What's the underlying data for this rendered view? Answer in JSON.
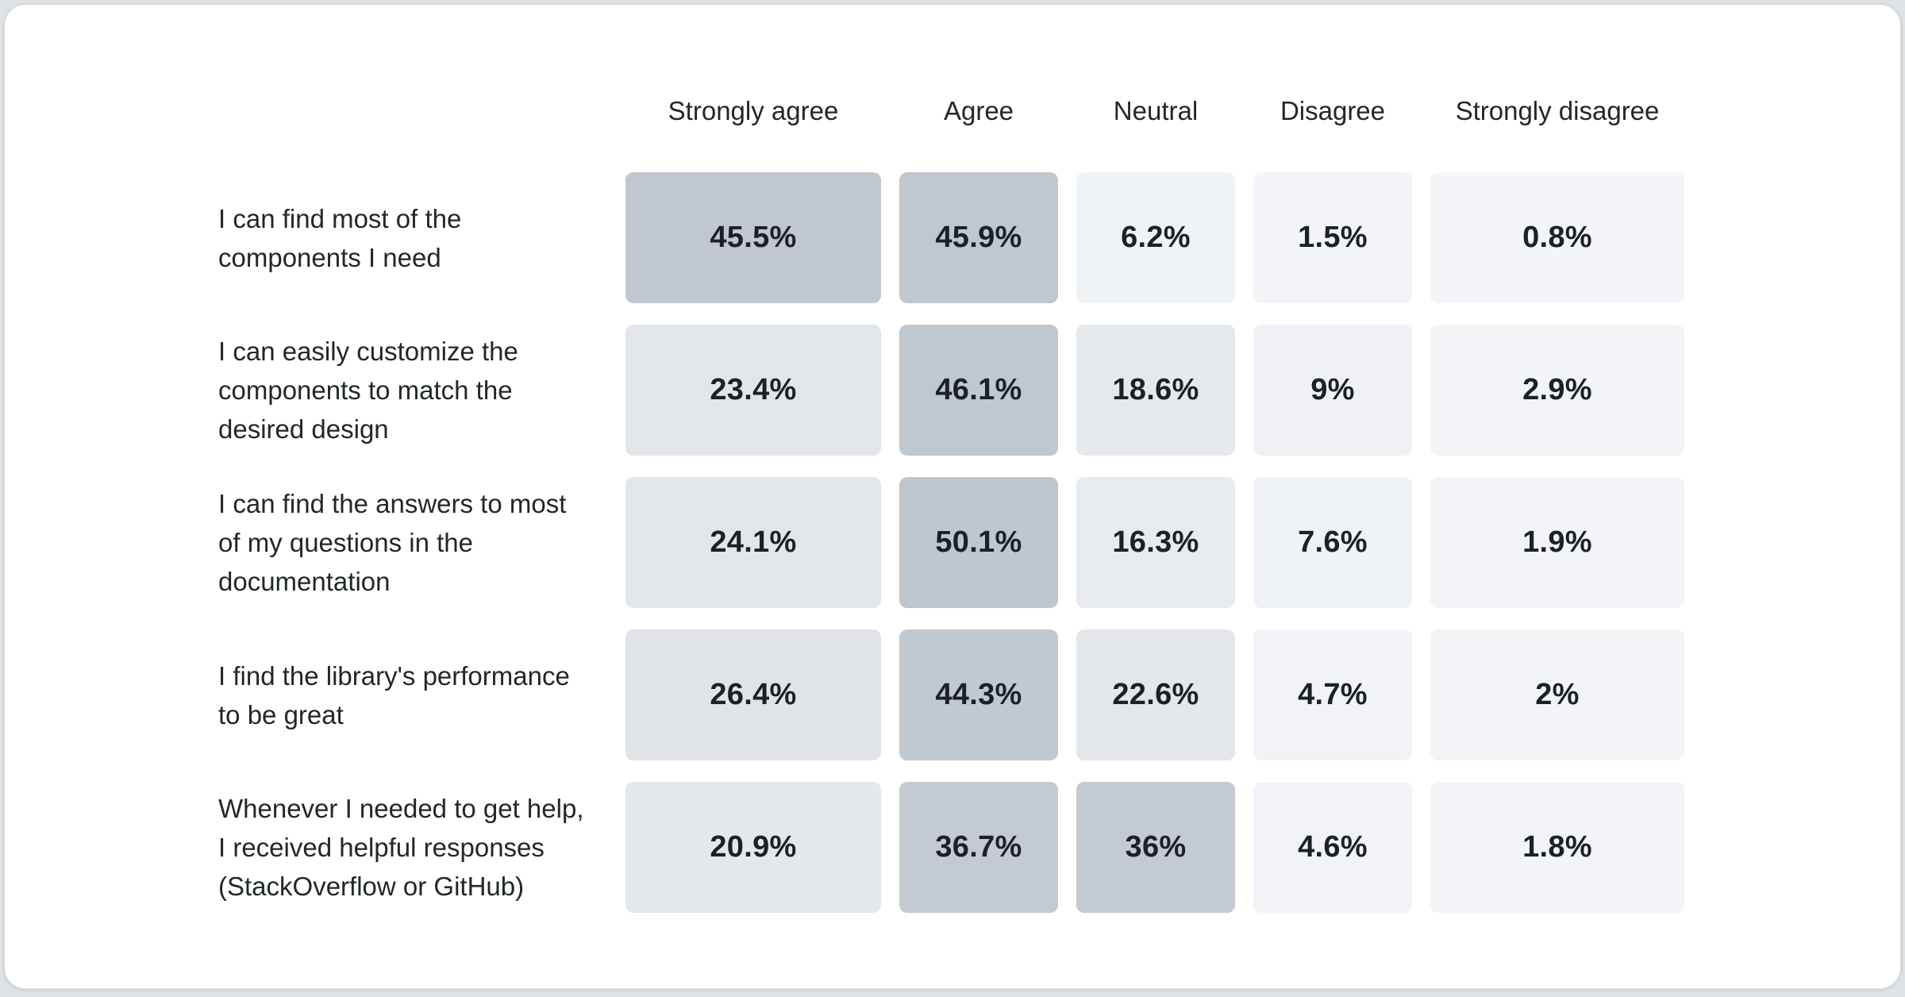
{
  "chart_data": {
    "type": "heatmap",
    "title": "",
    "columns": [
      "Strongly agree",
      "Agree",
      "Neutral",
      "Disagree",
      "Strongly disagree"
    ],
    "rows": [
      {
        "label": "I can find most of the\ncomponents I need",
        "values": [
          45.5,
          45.9,
          6.2,
          1.5,
          0.8
        ],
        "display": [
          "45.5%",
          "45.9%",
          "6.2%",
          "1.5%",
          "0.8%"
        ]
      },
      {
        "label": "I can easily customize the\ncomponents to match the\ndesired design",
        "values": [
          23.4,
          46.1,
          18.6,
          9,
          2.9
        ],
        "display": [
          "23.4%",
          "46.1%",
          "18.6%",
          "9%",
          "2.9%"
        ]
      },
      {
        "label": "I can find the answers to most\nof my questions in the\ndocumentation",
        "values": [
          24.1,
          50.1,
          16.3,
          7.6,
          1.9
        ],
        "display": [
          "24.1%",
          "50.1%",
          "16.3%",
          "7.6%",
          "1.9%"
        ]
      },
      {
        "label": "I find the library's performance\nto be great",
        "values": [
          26.4,
          44.3,
          22.6,
          4.7,
          2
        ],
        "display": [
          "26.4%",
          "44.3%",
          "22.6%",
          "4.7%",
          "2%"
        ]
      },
      {
        "label": "Whenever I needed to get help,\nI received helpful responses\n(StackOverflow or GitHub)",
        "values": [
          20.9,
          36.7,
          36,
          4.6,
          1.8
        ],
        "display": [
          "20.9%",
          "36.7%",
          "36%",
          "4.6%",
          "1.8%"
        ]
      }
    ],
    "color_scale": {
      "anchors": [
        [
          0,
          "#f3f5f8"
        ],
        [
          10,
          "#eef1f5"
        ],
        [
          16,
          "#e7eaee"
        ],
        [
          27,
          "#e0e4e9"
        ],
        [
          36,
          "#c3cad2"
        ],
        [
          50,
          "#bec6ce"
        ]
      ],
      "cell_text_color": "#1c2127",
      "label_text_color": "#21272a"
    },
    "layout": {
      "legend": "none",
      "grid": "off",
      "value_labels": "inside-cells"
    }
  }
}
